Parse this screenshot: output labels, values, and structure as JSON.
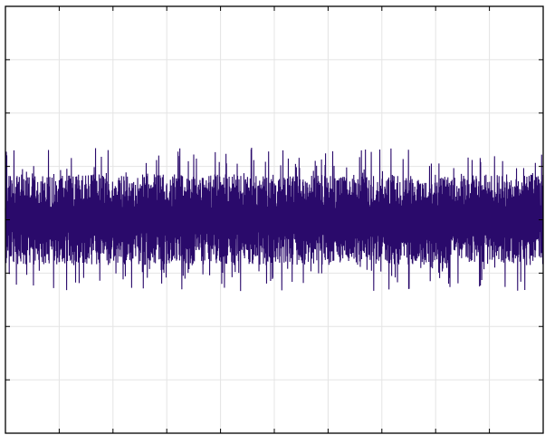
{
  "chart_data": {
    "type": "line",
    "title": "",
    "xlabel": "",
    "ylabel": "",
    "xlim": [
      0,
      10
    ],
    "ylim": [
      -4,
      4
    ],
    "grid": true,
    "legend": "none",
    "series": [
      {
        "color": "#2a0a6b",
        "envelope_center": 0.0,
        "envelope_amplitude": 0.85,
        "envelope_peak": 1.35
      }
    ]
  }
}
